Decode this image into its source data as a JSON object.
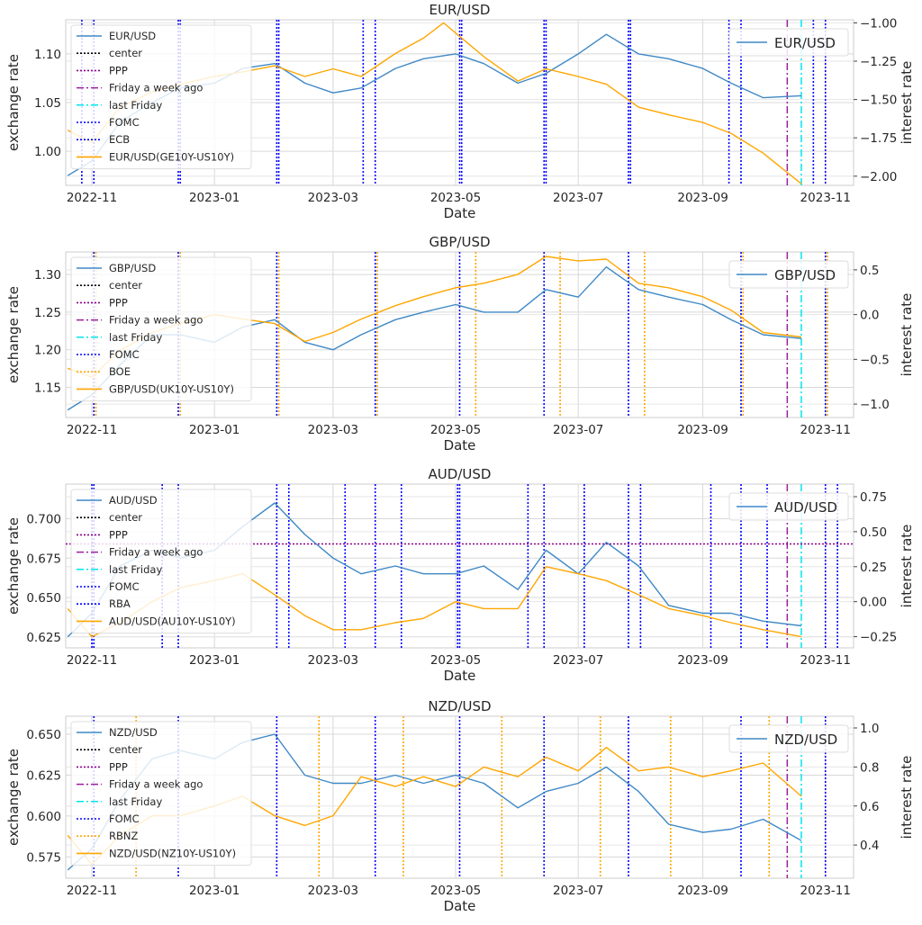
{
  "chart_data": [
    {
      "type": "line",
      "title": "EUR/USD",
      "xlabel": "Date",
      "ylabel": "exchange rate",
      "y2label": "interest rate",
      "x_ticks": [
        "2022-11",
        "2023-01",
        "2023-03",
        "2023-05",
        "2023-07",
        "2023-09",
        "2023-11"
      ],
      "y_ticks": [
        "1.00",
        "1.05",
        "1.10"
      ],
      "y2_ticks": [
        "−2.00",
        "−1.75",
        "−1.50",
        "−1.25",
        "−1.00"
      ],
      "ylim": [
        0.965,
        1.135
      ],
      "y2lim": [
        -2.06,
        -0.98
      ],
      "grid": true,
      "legend_left": [
        "EUR/USD",
        "center",
        "PPP",
        "Friday a week ago",
        "last Friday",
        "FOMC",
        "ECB",
        "EUR/USD(GE10Y-US10Y)"
      ],
      "legend_right": [
        "EUR/USD"
      ],
      "ppp": null,
      "fomc": [
        "2022-11-02",
        "2022-12-14",
        "2023-02-01",
        "2023-03-22",
        "2023-05-03",
        "2023-06-14",
        "2023-07-26",
        "2023-09-20",
        "2023-11-01"
      ],
      "central_bank": [
        "2022-10-27",
        "2022-12-15",
        "2023-02-02",
        "2023-03-16",
        "2023-05-04",
        "2023-06-15",
        "2023-07-27",
        "2023-09-14",
        "2023-10-26"
      ],
      "friday_week_ago": "2023-10-13",
      "last_friday": "2023-10-20",
      "series": [
        {
          "name": "EUR/USD",
          "axis": "left",
          "x": [
            "2022-10-20",
            "2022-11-01",
            "2022-11-15",
            "2022-12-01",
            "2022-12-15",
            "2023-01-01",
            "2023-01-15",
            "2023-01-31",
            "2023-02-15",
            "2023-03-01",
            "2023-03-15",
            "2023-04-01",
            "2023-04-15",
            "2023-05-01",
            "2023-05-15",
            "2023-06-01",
            "2023-06-15",
            "2023-07-01",
            "2023-07-15",
            "2023-07-31",
            "2023-08-15",
            "2023-09-01",
            "2023-09-15",
            "2023-10-01",
            "2023-10-20"
          ],
          "values": [
            0.975,
            0.99,
            1.03,
            1.05,
            1.065,
            1.07,
            1.085,
            1.09,
            1.07,
            1.06,
            1.065,
            1.085,
            1.095,
            1.1,
            1.09,
            1.07,
            1.08,
            1.1,
            1.12,
            1.1,
            1.095,
            1.085,
            1.07,
            1.055,
            1.057
          ]
        },
        {
          "name": "EUR/USD(GE10Y-US10Y)",
          "axis": "right",
          "x": [
            "2022-10-20",
            "2022-11-01",
            "2022-11-15",
            "2022-12-01",
            "2022-12-15",
            "2023-01-01",
            "2023-01-15",
            "2023-01-31",
            "2023-02-15",
            "2023-03-01",
            "2023-03-15",
            "2023-04-01",
            "2023-04-15",
            "2023-04-25",
            "2023-05-15",
            "2023-06-01",
            "2023-06-15",
            "2023-07-01",
            "2023-07-15",
            "2023-07-31",
            "2023-08-15",
            "2023-09-01",
            "2023-09-15",
            "2023-10-01",
            "2023-10-20"
          ],
          "values": [
            -1.7,
            -1.78,
            -1.55,
            -1.45,
            -1.4,
            -1.35,
            -1.32,
            -1.28,
            -1.35,
            -1.3,
            -1.35,
            -1.2,
            -1.1,
            -1.0,
            -1.22,
            -1.38,
            -1.3,
            -1.35,
            -1.4,
            -1.55,
            -1.6,
            -1.65,
            -1.72,
            -1.85,
            -2.05
          ]
        }
      ]
    },
    {
      "type": "line",
      "title": "GBP/USD",
      "xlabel": "Date",
      "ylabel": "exchange rate",
      "y2label": "interest rate",
      "x_ticks": [
        "2022-11",
        "2023-01",
        "2023-03",
        "2023-05",
        "2023-07",
        "2023-09",
        "2023-11"
      ],
      "y_ticks": [
        "1.15",
        "1.20",
        "1.25",
        "1.30"
      ],
      "y2_ticks": [
        "−1.0",
        "−0.5",
        "0.0",
        "0.5"
      ],
      "ylim": [
        1.11,
        1.33
      ],
      "y2lim": [
        -1.15,
        0.7
      ],
      "grid": true,
      "legend_left": [
        "GBP/USD",
        "center",
        "PPP",
        "Friday a week ago",
        "last Friday",
        "FOMC",
        "BOE",
        "GBP/USD(UK10Y-US10Y)"
      ],
      "legend_right": [
        "GBP/USD"
      ],
      "ppp": null,
      "fomc": [
        "2022-11-02",
        "2022-12-14",
        "2023-02-01",
        "2023-03-22",
        "2023-05-03",
        "2023-06-14",
        "2023-07-26",
        "2023-09-20",
        "2023-11-01"
      ],
      "central_bank": [
        "2022-11-03",
        "2022-12-15",
        "2023-02-02",
        "2023-03-23",
        "2023-05-11",
        "2023-06-22",
        "2023-08-03",
        "2023-09-21",
        "2023-11-02"
      ],
      "friday_week_ago": "2023-10-13",
      "last_friday": "2023-10-20",
      "series": [
        {
          "name": "GBP/USD",
          "axis": "left",
          "x": [
            "2022-10-20",
            "2022-11-01",
            "2022-11-15",
            "2022-12-01",
            "2022-12-15",
            "2023-01-01",
            "2023-01-15",
            "2023-01-31",
            "2023-02-15",
            "2023-03-01",
            "2023-03-15",
            "2023-04-01",
            "2023-04-15",
            "2023-05-01",
            "2023-05-15",
            "2023-06-01",
            "2023-06-15",
            "2023-07-01",
            "2023-07-15",
            "2023-07-31",
            "2023-08-15",
            "2023-09-01",
            "2023-09-15",
            "2023-10-01",
            "2023-10-20"
          ],
          "values": [
            1.12,
            1.14,
            1.18,
            1.22,
            1.22,
            1.21,
            1.23,
            1.24,
            1.21,
            1.2,
            1.22,
            1.24,
            1.25,
            1.26,
            1.25,
            1.25,
            1.28,
            1.27,
            1.31,
            1.28,
            1.27,
            1.26,
            1.24,
            1.22,
            1.215
          ]
        },
        {
          "name": "GBP/USD(UK10Y-US10Y)",
          "axis": "right",
          "x": [
            "2022-10-20",
            "2022-11-01",
            "2022-11-15",
            "2022-12-01",
            "2022-12-15",
            "2023-01-01",
            "2023-01-15",
            "2023-01-31",
            "2023-02-15",
            "2023-03-01",
            "2023-03-15",
            "2023-04-01",
            "2023-04-15",
            "2023-05-01",
            "2023-05-15",
            "2023-06-01",
            "2023-06-15",
            "2023-07-01",
            "2023-07-15",
            "2023-07-31",
            "2023-08-15",
            "2023-09-01",
            "2023-09-15",
            "2023-10-01",
            "2023-10-20"
          ],
          "values": [
            -0.6,
            -0.7,
            -0.4,
            -0.2,
            -0.1,
            0.0,
            -0.05,
            -0.1,
            -0.3,
            -0.2,
            -0.05,
            0.1,
            0.2,
            0.3,
            0.35,
            0.45,
            0.65,
            0.6,
            0.62,
            0.35,
            0.3,
            0.2,
            0.05,
            -0.2,
            -0.25
          ]
        }
      ]
    },
    {
      "type": "line",
      "title": "AUD/USD",
      "xlabel": "Date",
      "ylabel": "exchange rate",
      "y2label": "interest rate",
      "x_ticks": [
        "2022-11",
        "2023-01",
        "2023-03",
        "2023-05",
        "2023-07",
        "2023-09",
        "2023-11"
      ],
      "y_ticks": [
        "0.625",
        "0.650",
        "0.675",
        "0.700"
      ],
      "y2_ticks": [
        "−0.25",
        "0.00",
        "0.25",
        "0.50",
        "0.75"
      ],
      "ylim": [
        0.618,
        0.722
      ],
      "y2lim": [
        -0.33,
        0.84
      ],
      "grid": true,
      "legend_left": [
        "AUD/USD",
        "center",
        "PPP",
        "Friday a week ago",
        "last Friday",
        "FOMC",
        "RBA",
        "AUD/USD(AU10Y-US10Y)"
      ],
      "legend_right": [
        "AUD/USD"
      ],
      "ppp": 0.684,
      "fomc": [
        "2022-11-02",
        "2022-12-14",
        "2023-02-01",
        "2023-03-22",
        "2023-05-03",
        "2023-06-14",
        "2023-07-26",
        "2023-09-20",
        "2023-11-01"
      ],
      "central_bank": [
        "2022-11-01",
        "2022-12-06",
        "2023-02-07",
        "2023-03-07",
        "2023-04-04",
        "2023-05-02",
        "2023-06-06",
        "2023-07-04",
        "2023-08-01",
        "2023-09-05",
        "2023-10-03",
        "2023-11-07"
      ],
      "friday_week_ago": "2023-10-13",
      "last_friday": "2023-10-20",
      "series": [
        {
          "name": "AUD/USD",
          "axis": "left",
          "x": [
            "2022-10-20",
            "2022-11-01",
            "2022-11-15",
            "2022-12-01",
            "2022-12-15",
            "2023-01-01",
            "2023-01-15",
            "2023-01-31",
            "2023-02-15",
            "2023-03-01",
            "2023-03-15",
            "2023-04-01",
            "2023-04-15",
            "2023-05-01",
            "2023-05-15",
            "2023-06-01",
            "2023-06-15",
            "2023-07-01",
            "2023-07-15",
            "2023-07-31",
            "2023-08-15",
            "2023-09-01",
            "2023-09-15",
            "2023-10-01",
            "2023-10-20"
          ],
          "values": [
            0.625,
            0.64,
            0.67,
            0.68,
            0.675,
            0.68,
            0.695,
            0.71,
            0.69,
            0.675,
            0.665,
            0.67,
            0.665,
            0.665,
            0.67,
            0.655,
            0.68,
            0.665,
            0.685,
            0.67,
            0.645,
            0.64,
            0.64,
            0.635,
            0.632
          ]
        },
        {
          "name": "AUD/USD(AU10Y-US10Y)",
          "axis": "right",
          "x": [
            "2022-10-20",
            "2022-11-01",
            "2022-11-15",
            "2022-12-01",
            "2022-12-15",
            "2023-01-01",
            "2023-01-15",
            "2023-01-31",
            "2023-02-15",
            "2023-03-01",
            "2023-03-15",
            "2023-04-01",
            "2023-04-15",
            "2023-05-01",
            "2023-05-15",
            "2023-06-01",
            "2023-06-15",
            "2023-07-01",
            "2023-07-15",
            "2023-07-31",
            "2023-08-15",
            "2023-09-01",
            "2023-09-15",
            "2023-10-01",
            "2023-10-20"
          ],
          "values": [
            -0.05,
            -0.25,
            -0.15,
            0.0,
            0.1,
            0.15,
            0.2,
            0.05,
            -0.1,
            -0.2,
            -0.2,
            -0.15,
            -0.12,
            0.0,
            -0.05,
            -0.05,
            0.25,
            0.2,
            0.15,
            0.05,
            -0.05,
            -0.1,
            -0.15,
            -0.2,
            -0.25
          ]
        }
      ]
    },
    {
      "type": "line",
      "title": "NZD/USD",
      "xlabel": "Date",
      "ylabel": "exchange rate",
      "y2label": "interest rate",
      "x_ticks": [
        "2022-11",
        "2023-01",
        "2023-03",
        "2023-05",
        "2023-07",
        "2023-09",
        "2023-11"
      ],
      "y_ticks": [
        "0.575",
        "0.600",
        "0.625",
        "0.650"
      ],
      "y2_ticks": [
        "0.4",
        "0.6",
        "0.8",
        "1.0"
      ],
      "ylim": [
        0.562,
        0.661
      ],
      "y2lim": [
        0.23,
        1.06
      ],
      "grid": true,
      "legend_left": [
        "NZD/USD",
        "center",
        "PPP",
        "Friday a week ago",
        "last Friday",
        "FOMC",
        "RBNZ",
        "NZD/USD(NZ10Y-US10Y)"
      ],
      "legend_right": [
        "NZD/USD"
      ],
      "ppp": null,
      "fomc": [
        "2022-11-02",
        "2022-12-14",
        "2023-02-01",
        "2023-03-22",
        "2023-05-03",
        "2023-06-14",
        "2023-07-26",
        "2023-09-20",
        "2023-11-01"
      ],
      "central_bank": [
        "2022-11-23",
        "2023-02-22",
        "2023-04-05",
        "2023-05-24",
        "2023-07-12",
        "2023-08-16",
        "2023-10-04"
      ],
      "friday_week_ago": "2023-10-13",
      "last_friday": "2023-10-20",
      "series": [
        {
          "name": "NZD/USD",
          "axis": "left",
          "x": [
            "2022-10-20",
            "2022-11-01",
            "2022-11-15",
            "2022-12-01",
            "2022-12-15",
            "2023-01-01",
            "2023-01-15",
            "2023-01-31",
            "2023-02-15",
            "2023-03-01",
            "2023-03-15",
            "2023-04-01",
            "2023-04-15",
            "2023-05-01",
            "2023-05-15",
            "2023-06-01",
            "2023-06-15",
            "2023-07-01",
            "2023-07-15",
            "2023-07-31",
            "2023-08-15",
            "2023-09-01",
            "2023-09-15",
            "2023-10-01",
            "2023-10-20"
          ],
          "values": [
            0.567,
            0.58,
            0.61,
            0.635,
            0.64,
            0.635,
            0.645,
            0.65,
            0.625,
            0.62,
            0.62,
            0.625,
            0.62,
            0.625,
            0.62,
            0.605,
            0.615,
            0.62,
            0.63,
            0.615,
            0.595,
            0.59,
            0.592,
            0.598,
            0.585
          ]
        },
        {
          "name": "NZD/USD(NZ10Y-US10Y)",
          "axis": "right",
          "x": [
            "2022-10-20",
            "2022-11-01",
            "2022-11-15",
            "2022-12-01",
            "2022-12-15",
            "2023-01-01",
            "2023-01-15",
            "2023-01-31",
            "2023-02-15",
            "2023-03-01",
            "2023-03-15",
            "2023-04-01",
            "2023-04-15",
            "2023-05-01",
            "2023-05-15",
            "2023-06-01",
            "2023-06-15",
            "2023-07-01",
            "2023-07-15",
            "2023-07-31",
            "2023-08-15",
            "2023-09-01",
            "2023-09-15",
            "2023-10-01",
            "2023-10-20"
          ],
          "values": [
            0.45,
            0.3,
            0.45,
            0.55,
            0.55,
            0.6,
            0.65,
            0.55,
            0.5,
            0.55,
            0.75,
            0.7,
            0.75,
            0.7,
            0.8,
            0.75,
            0.85,
            0.78,
            0.9,
            0.78,
            0.8,
            0.75,
            0.78,
            0.82,
            0.65
          ]
        }
      ]
    }
  ]
}
